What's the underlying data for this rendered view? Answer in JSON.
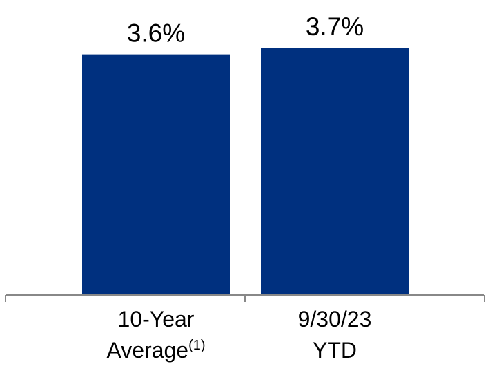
{
  "chart_data": {
    "type": "bar",
    "categories": [
      [
        "10-Year",
        "Average"
      ],
      [
        "9/30/23",
        "YTD"
      ]
    ],
    "category_notes": [
      "(1)",
      null
    ],
    "values": [
      3.6,
      3.7
    ],
    "value_labels": [
      "3.6%",
      "3.7%"
    ],
    "color": "#00307f"
  }
}
